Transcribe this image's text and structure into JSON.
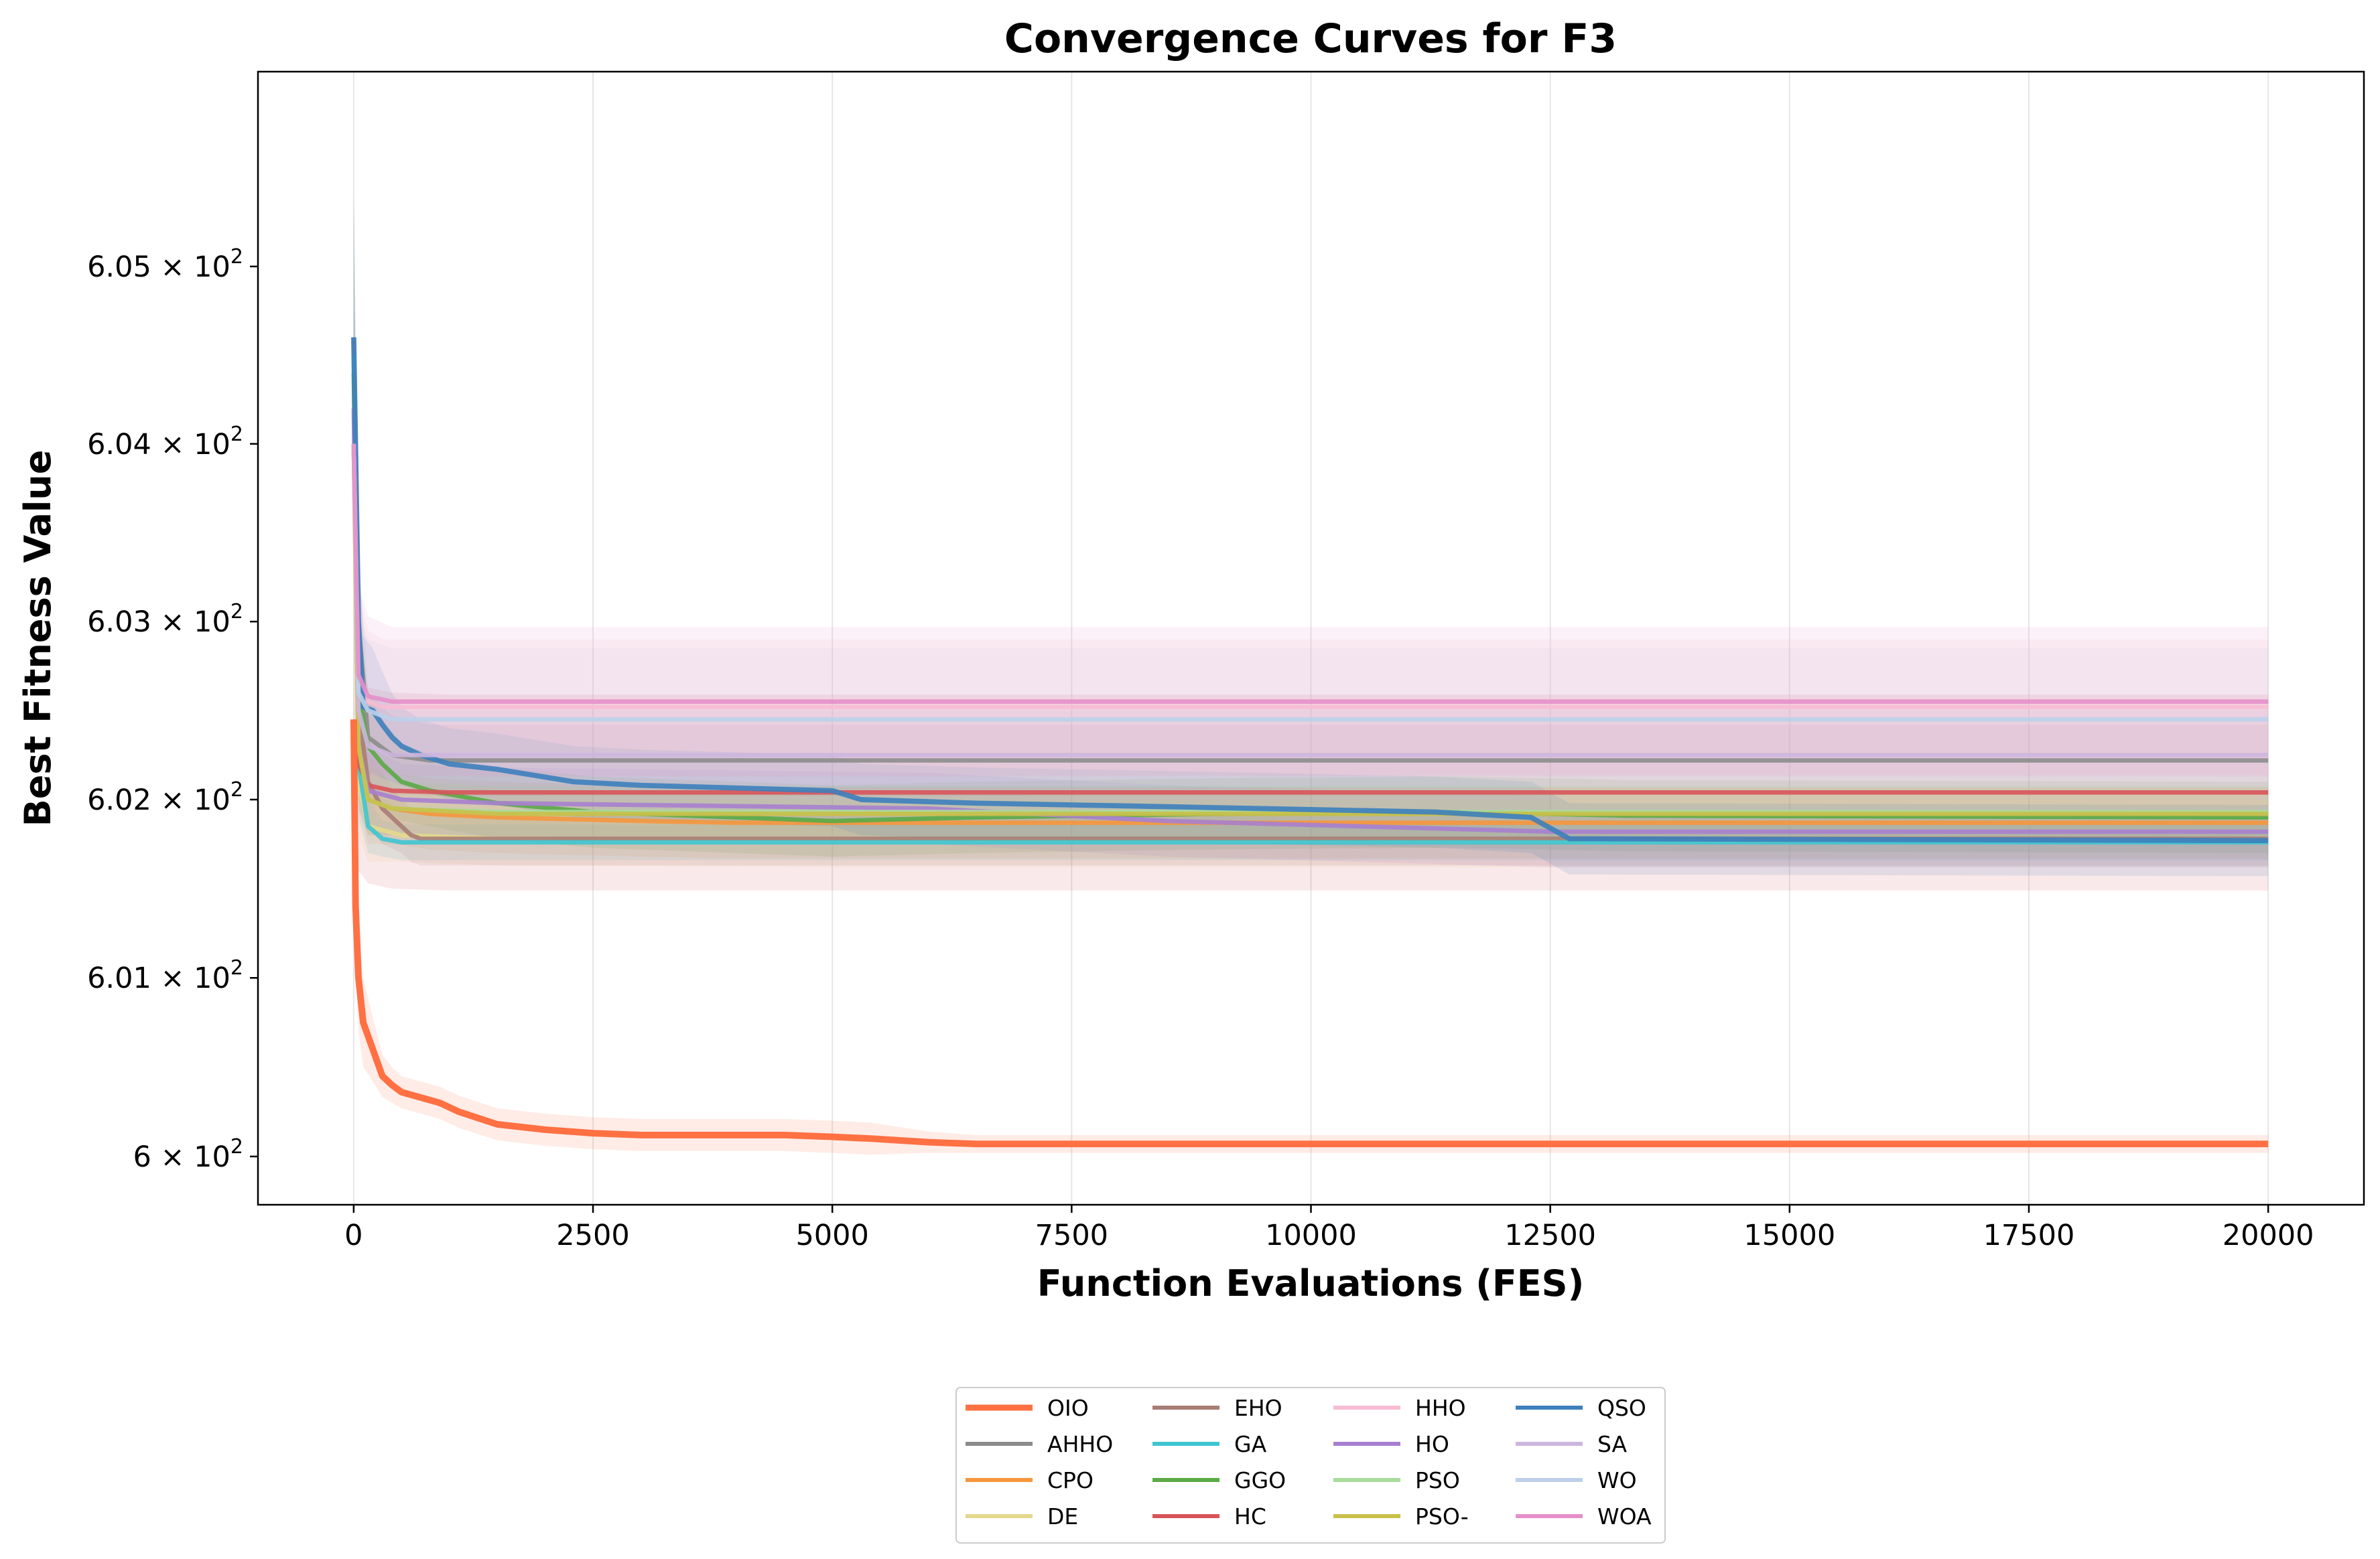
{
  "chart_data": {
    "type": "line",
    "title": "Convergence Curves for F3",
    "xlabel": "Function Evaluations (FES)",
    "ylabel": "Best Fitness Value",
    "xlim": [
      -1000,
      21000
    ],
    "ylim": [
      599.73,
      606.1
    ],
    "yscale": "log",
    "grid": "x-only",
    "legend_position": "lower-center-outside",
    "x_ticks": [
      0,
      2500,
      5000,
      7500,
      10000,
      12500,
      15000,
      17500,
      20000
    ],
    "x_tick_labels": [
      "0",
      "2500",
      "5000",
      "7500",
      "10000",
      "12500",
      "15000",
      "17500",
      "20000"
    ],
    "y_ticks": [
      600,
      601,
      602,
      603,
      604,
      605
    ],
    "y_tick_labels": [
      {
        "mant": "6",
        "x": true,
        "base": "10",
        "exp": "2"
      },
      {
        "mant": "6.01",
        "x": true,
        "base": "10",
        "exp": "2"
      },
      {
        "mant": "6.02",
        "x": true,
        "base": "10",
        "exp": "2"
      },
      {
        "mant": "6.03",
        "x": true,
        "base": "10",
        "exp": "2"
      },
      {
        "mant": "6.04",
        "x": true,
        "base": "10",
        "exp": "2"
      },
      {
        "mant": "6.05",
        "x": true,
        "base": "10",
        "exp": "2"
      }
    ],
    "series": [
      {
        "name": "OIO",
        "color": "#ff7043",
        "width": 4.5,
        "x": [
          0,
          20,
          50,
          100,
          200,
          300,
          400,
          500,
          700,
          900,
          1100,
          1500,
          2000,
          2500,
          3000,
          4000,
          4500,
          5000,
          5400,
          6000,
          6500,
          7500,
          10000,
          15000,
          20000
        ],
        "y": [
          602.45,
          601.4,
          601.0,
          600.75,
          600.6,
          600.45,
          600.4,
          600.36,
          600.33,
          600.3,
          600.25,
          600.18,
          600.15,
          600.13,
          600.12,
          600.12,
          600.12,
          600.11,
          600.1,
          600.08,
          600.07,
          600.07,
          600.07,
          600.07,
          600.07
        ],
        "band": [
          0.25,
          0.35,
          0.3,
          0.25,
          0.18,
          0.12,
          0.1,
          0.09,
          0.09,
          0.09,
          0.09,
          0.09,
          0.09,
          0.09,
          0.09,
          0.09,
          0.09,
          0.09,
          0.09,
          0.06,
          0.05,
          0.05,
          0.05,
          0.05,
          0.05
        ]
      },
      {
        "name": "AHHO",
        "color": "#8c8c8c",
        "width": 3,
        "x": [
          0,
          50,
          150,
          400,
          800,
          20000
        ],
        "y": [
          604.6,
          603.0,
          602.35,
          602.25,
          602.22,
          602.22
        ],
        "band": [
          0.8,
          0.4,
          0.25,
          0.22,
          0.2,
          0.2
        ]
      },
      {
        "name": "CPO",
        "color": "#f5963e",
        "width": 3,
        "x": [
          0,
          50,
          150,
          400,
          800,
          1500,
          3000,
          4000,
          20000
        ],
        "y": [
          604.0,
          602.3,
          602.0,
          601.95,
          601.92,
          601.9,
          601.88,
          601.87,
          601.87
        ],
        "band": [
          0.7,
          0.35,
          0.25,
          0.2,
          0.2,
          0.2,
          0.2,
          0.2,
          0.2
        ]
      },
      {
        "name": "DE",
        "color": "#e3d98d",
        "width": 3,
        "x": [
          0,
          50,
          150,
          500,
          1500,
          5000,
          20000
        ],
        "y": [
          604.0,
          602.1,
          601.85,
          601.8,
          601.78,
          601.77,
          601.77
        ],
        "band": [
          0.7,
          0.3,
          0.2,
          0.15,
          0.15,
          0.15,
          0.15
        ]
      },
      {
        "name": "EHO",
        "color": "#a87d75",
        "width": 3,
        "x": [
          0,
          50,
          150,
          300,
          500,
          600,
          700,
          20000
        ],
        "y": [
          604.6,
          602.5,
          602.1,
          601.95,
          601.85,
          601.8,
          601.78,
          601.78
        ],
        "band": [
          0.8,
          0.4,
          0.25,
          0.2,
          0.15,
          0.15,
          0.15,
          0.15
        ]
      },
      {
        "name": "GA",
        "color": "#3ec5d2",
        "width": 3,
        "x": [
          0,
          50,
          150,
          300,
          500,
          20000
        ],
        "y": [
          604.5,
          602.2,
          601.85,
          601.78,
          601.76,
          601.76
        ],
        "band": [
          0.8,
          0.3,
          0.15,
          0.1,
          0.1,
          0.1
        ]
      },
      {
        "name": "GGO",
        "color": "#5aaa46",
        "width": 3,
        "x": [
          0,
          50,
          150,
          300,
          500,
          800,
          1500,
          2500,
          4000,
          5000,
          6500,
          9000,
          11500,
          13300,
          20000
        ],
        "y": [
          604.4,
          602.6,
          602.3,
          602.2,
          602.1,
          602.05,
          601.98,
          601.93,
          601.9,
          601.88,
          601.9,
          601.92,
          601.93,
          601.91,
          601.9
        ],
        "band": [
          0.7,
          0.4,
          0.3,
          0.25,
          0.22,
          0.2,
          0.2,
          0.2,
          0.2,
          0.2,
          0.2,
          0.2,
          0.2,
          0.2,
          0.2
        ]
      },
      {
        "name": "HC",
        "color": "#d9545a",
        "width": 3,
        "x": [
          0,
          50,
          150,
          400,
          1000,
          20000
        ],
        "y": [
          602.45,
          602.2,
          602.08,
          602.05,
          602.04,
          602.04
        ],
        "band": [
          0.8,
          0.6,
          0.55,
          0.55,
          0.55,
          0.55
        ]
      },
      {
        "name": "HHO",
        "color": "#f7bcd4",
        "width": 3,
        "x": [
          0,
          50,
          150,
          300,
          20000
        ],
        "y": [
          604.0,
          602.7,
          602.55,
          602.52,
          602.52
        ],
        "band": [
          0.7,
          0.45,
          0.4,
          0.38,
          0.38
        ]
      },
      {
        "name": "HO",
        "color": "#a77fcf",
        "width": 3,
        "x": [
          0,
          50,
          150,
          500,
          1500,
          3000,
          6000,
          8500,
          12500,
          20000
        ],
        "y": [
          604.2,
          602.3,
          602.05,
          602.0,
          601.98,
          601.97,
          601.95,
          601.88,
          601.82,
          601.82
        ],
        "band": [
          0.7,
          0.35,
          0.25,
          0.2,
          0.2,
          0.2,
          0.2,
          0.2,
          0.2,
          0.2
        ]
      },
      {
        "name": "PSO",
        "color": "#a9dc9b",
        "width": 3,
        "x": [
          0,
          50,
          150,
          400,
          1500,
          20000
        ],
        "y": [
          604.0,
          602.3,
          602.0,
          601.95,
          601.93,
          601.93
        ],
        "band": [
          0.7,
          0.3,
          0.2,
          0.15,
          0.15,
          0.15
        ]
      },
      {
        "name": "PSO-",
        "color": "#c9c04a",
        "width": 3,
        "x": [
          0,
          50,
          150,
          400,
          1500,
          20000
        ],
        "y": [
          604.0,
          602.3,
          602.0,
          601.95,
          601.92,
          601.92
        ],
        "band": [
          0.7,
          0.3,
          0.2,
          0.15,
          0.15,
          0.15
        ]
      },
      {
        "name": "QSO",
        "color": "#3d7fbd",
        "width": 3.5,
        "x": [
          0,
          50,
          100,
          200,
          300,
          400,
          500,
          700,
          1000,
          1500,
          2300,
          3000,
          5000,
          5300,
          6500,
          8500,
          11300,
          12300,
          12700,
          20000
        ],
        "y": [
          604.6,
          603.0,
          602.52,
          602.5,
          602.42,
          602.35,
          602.3,
          602.25,
          602.2,
          602.17,
          602.1,
          602.08,
          602.05,
          602.0,
          601.98,
          601.96,
          601.93,
          601.9,
          601.78,
          601.77
        ],
        "band": [
          0.8,
          0.4,
          0.4,
          0.35,
          0.3,
          0.25,
          0.22,
          0.2,
          0.2,
          0.2,
          0.2,
          0.2,
          0.2,
          0.2,
          0.2,
          0.2,
          0.2,
          0.2,
          0.2,
          0.2
        ]
      },
      {
        "name": "SA",
        "color": "#cdb6de",
        "width": 3,
        "x": [
          0,
          50,
          150,
          400,
          20000
        ],
        "y": [
          604.0,
          602.5,
          602.3,
          602.25,
          602.25
        ],
        "band": [
          0.7,
          0.4,
          0.3,
          0.25,
          0.25
        ]
      },
      {
        "name": "WO",
        "color": "#bdd0ea",
        "width": 3,
        "x": [
          0,
          50,
          150,
          400,
          20000
        ],
        "y": [
          604.0,
          602.6,
          602.5,
          602.45,
          602.45
        ],
        "band": [
          0.7,
          0.45,
          0.4,
          0.4,
          0.4
        ]
      },
      {
        "name": "WOA",
        "color": "#e58fc9",
        "width": 3,
        "x": [
          0,
          50,
          150,
          400,
          20000
        ],
        "y": [
          604.0,
          602.7,
          602.58,
          602.55,
          602.55
        ],
        "band": [
          0.7,
          0.5,
          0.45,
          0.42,
          0.42
        ]
      }
    ]
  }
}
